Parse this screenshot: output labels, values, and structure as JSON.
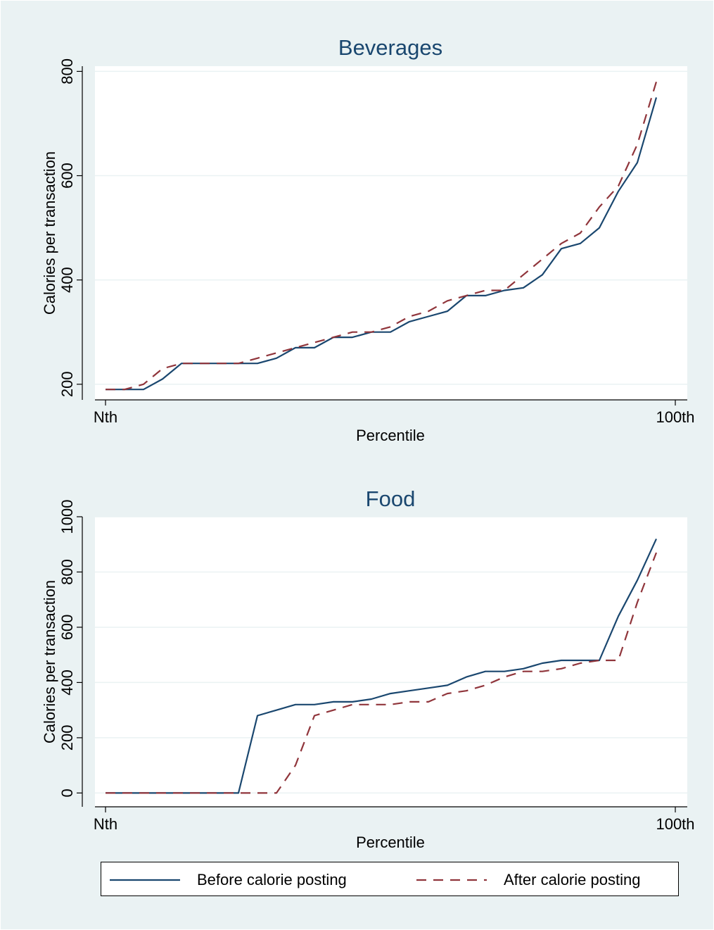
{
  "figure": {
    "background_color": "#eaf2f3",
    "plot_background_color": "#ffffff",
    "grid_color": "#eaf2f3"
  },
  "legend": {
    "position": "bottom",
    "items": [
      {
        "label": "Before calorie posting",
        "color": "#1a476f",
        "style": "solid"
      },
      {
        "label": "After calorie posting",
        "color": "#90353b",
        "style": "dashed"
      }
    ]
  },
  "chart_data": [
    {
      "type": "line",
      "title": "Beverages",
      "xlabel": "Percentile",
      "ylabel": "Calories per transaction",
      "x_tick_labels": [
        "Nth",
        "100th"
      ],
      "ylim": [
        170,
        810
      ],
      "yticks": [
        200,
        400,
        600,
        800
      ],
      "grid": true,
      "series": [
        {
          "name": "Before calorie posting",
          "color": "#1a476f",
          "style": "solid",
          "values": [
            190,
            190,
            190,
            210,
            240,
            240,
            240,
            240,
            240,
            250,
            270,
            270,
            290,
            290,
            300,
            300,
            320,
            330,
            340,
            370,
            370,
            380,
            385,
            410,
            460,
            470,
            500,
            570,
            625,
            750
          ]
        },
        {
          "name": "After calorie posting",
          "color": "#90353b",
          "style": "dashed",
          "values": [
            190,
            190,
            200,
            230,
            240,
            240,
            240,
            240,
            250,
            260,
            270,
            280,
            290,
            300,
            300,
            310,
            330,
            340,
            360,
            370,
            380,
            380,
            410,
            440,
            470,
            490,
            540,
            580,
            660,
            780
          ]
        }
      ]
    },
    {
      "type": "line",
      "title": "Food",
      "xlabel": "Percentile",
      "ylabel": "Calories per transaction",
      "x_tick_labels": [
        "Nth",
        "100th"
      ],
      "ylim": [
        -50,
        1000
      ],
      "yticks": [
        0,
        200,
        400,
        600,
        800,
        1000
      ],
      "grid": true,
      "series": [
        {
          "name": "Before calorie posting",
          "color": "#1a476f",
          "style": "solid",
          "values": [
            0,
            0,
            0,
            0,
            0,
            0,
            0,
            0,
            280,
            300,
            320,
            320,
            330,
            330,
            340,
            360,
            370,
            380,
            390,
            420,
            440,
            440,
            450,
            470,
            480,
            480,
            480,
            640,
            770,
            920
          ]
        },
        {
          "name": "After calorie posting",
          "color": "#90353b",
          "style": "dashed",
          "values": [
            0,
            0,
            0,
            0,
            0,
            0,
            0,
            0,
            0,
            0,
            100,
            280,
            300,
            320,
            320,
            320,
            330,
            330,
            360,
            370,
            390,
            420,
            440,
            440,
            450,
            470,
            480,
            480,
            690,
            870
          ]
        }
      ]
    }
  ]
}
